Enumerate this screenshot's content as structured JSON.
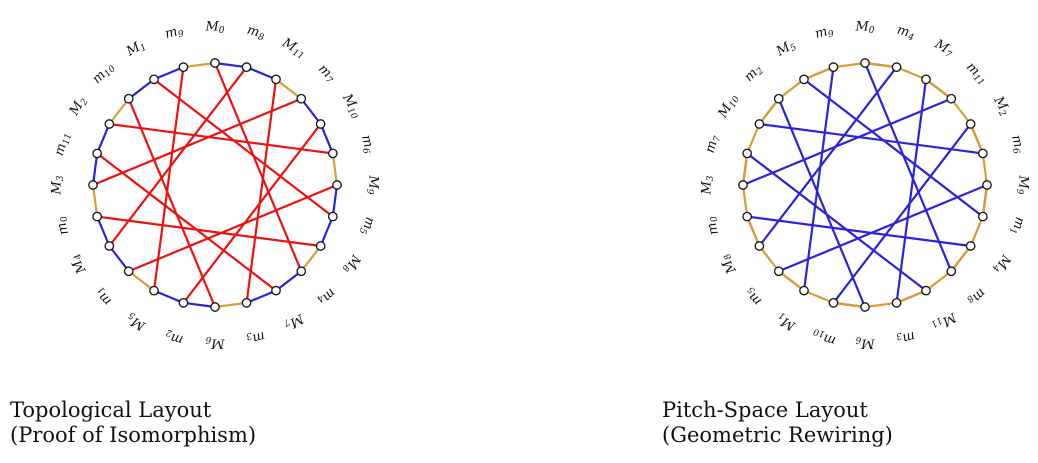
{
  "diagrams": [
    {
      "id": "topological",
      "caption_line1": "Topological Layout",
      "caption_line2": "(Proof of Isomorphism)",
      "nodes": [
        "M0",
        "m8",
        "M11",
        "m7",
        "M10",
        "m6",
        "M9",
        "m5",
        "M8",
        "m4",
        "M7",
        "m3",
        "M6",
        "m2",
        "M5",
        "m1",
        "M4",
        "m0",
        "M3",
        "m11",
        "M2",
        "m10",
        "M1",
        "m9"
      ],
      "edge_colors": {
        "ring_segment_a": "#2a22dd",
        "ring_segment_b": "#d4a035",
        "chord": "#ee1111"
      },
      "ring_segments": [
        [
          "M0",
          "m8",
          "blue"
        ],
        [
          "m8",
          "M11",
          "blue"
        ],
        [
          "M11",
          "m7",
          "gold"
        ],
        [
          "m7",
          "M10",
          "blue"
        ],
        [
          "M10",
          "m6",
          "blue"
        ],
        [
          "m6",
          "M9",
          "gold"
        ],
        [
          "M9",
          "m5",
          "blue"
        ],
        [
          "m5",
          "M8",
          "blue"
        ],
        [
          "M8",
          "m4",
          "gold"
        ],
        [
          "m4",
          "M7",
          "blue"
        ],
        [
          "M7",
          "m3",
          "blue"
        ],
        [
          "m3",
          "M6",
          "gold"
        ],
        [
          "M6",
          "m2",
          "blue"
        ],
        [
          "m2",
          "M5",
          "blue"
        ],
        [
          "M5",
          "m1",
          "gold"
        ],
        [
          "m1",
          "M4",
          "blue"
        ],
        [
          "M4",
          "m0",
          "blue"
        ],
        [
          "m0",
          "M3",
          "gold"
        ],
        [
          "M3",
          "m11",
          "blue"
        ],
        [
          "m11",
          "M2",
          "blue"
        ],
        [
          "M2",
          "m10",
          "gold"
        ],
        [
          "m10",
          "M1",
          "blue"
        ],
        [
          "M1",
          "m9",
          "blue"
        ],
        [
          "m9",
          "M0",
          "gold"
        ]
      ],
      "chords": [
        [
          "M0",
          "m4"
        ],
        [
          "M2",
          "m6"
        ],
        [
          "M3",
          "m7"
        ],
        [
          "M4",
          "m8"
        ],
        [
          "M5",
          "m9"
        ],
        [
          "M6",
          "m10"
        ],
        [
          "M7",
          "m11"
        ],
        [
          "M8",
          "m0"
        ],
        [
          "M9",
          "m1"
        ],
        [
          "M10",
          "m2"
        ],
        [
          "M11",
          "m3"
        ],
        [
          "M1",
          "m5"
        ]
      ]
    },
    {
      "id": "pitch-space",
      "caption_line1": "Pitch-Space Layout",
      "caption_line2": "(Geometric Rewiring)",
      "nodes": [
        "M0",
        "m4",
        "M7",
        "m11",
        "M2",
        "m6",
        "M9",
        "m1",
        "M4",
        "m8",
        "M11",
        "m3",
        "M6",
        "m10",
        "M1",
        "m5",
        "M8",
        "m0",
        "M3",
        "m7",
        "M10",
        "m2",
        "M5",
        "m9"
      ],
      "edge_colors": {
        "ring": "#d4a035",
        "blue": "#2a22dd",
        "red": "#ee1111"
      },
      "ring_segments": [
        [
          "M0",
          "m4",
          "gold"
        ],
        [
          "m4",
          "M7",
          "gold"
        ],
        [
          "M7",
          "m11",
          "gold"
        ],
        [
          "m11",
          "M2",
          "gold"
        ],
        [
          "M2",
          "m6",
          "gold"
        ],
        [
          "m6",
          "M9",
          "gold"
        ],
        [
          "M9",
          "m1",
          "gold"
        ],
        [
          "m1",
          "M4",
          "gold"
        ],
        [
          "M4",
          "m8",
          "gold"
        ],
        [
          "m8",
          "M11",
          "gold"
        ],
        [
          "M11",
          "m3",
          "gold"
        ],
        [
          "m3",
          "M6",
          "gold"
        ],
        [
          "M6",
          "m10",
          "gold"
        ],
        [
          "m10",
          "M1",
          "gold"
        ],
        [
          "M1",
          "m5",
          "gold"
        ],
        [
          "m5",
          "M8",
          "gold"
        ],
        [
          "M8",
          "m0",
          "gold"
        ],
        [
          "m0",
          "M3",
          "gold"
        ],
        [
          "M3",
          "m7",
          "gold"
        ],
        [
          "m7",
          "M10",
          "gold"
        ],
        [
          "M10",
          "m2",
          "gold"
        ],
        [
          "m2",
          "M5",
          "gold"
        ],
        [
          "M5",
          "m9",
          "gold"
        ],
        [
          "m9",
          "M0",
          "gold"
        ]
      ],
      "blue_edges": [
        [
          "M0",
          "m8"
        ],
        [
          "M11",
          "m7"
        ],
        [
          "M10",
          "m6"
        ],
        [
          "M9",
          "m5"
        ],
        [
          "M8",
          "m4"
        ],
        [
          "M7",
          "m3"
        ],
        [
          "M6",
          "m2"
        ],
        [
          "M5",
          "m1"
        ],
        [
          "M4",
          "m0"
        ],
        [
          "M3",
          "m11"
        ],
        [
          "M2",
          "m10"
        ],
        [
          "M1",
          "m9"
        ]
      ],
      "red_edges": [
        [
          "M0",
          "m4"
        ],
        [
          "M2",
          "m6"
        ],
        [
          "M3",
          "m7"
        ],
        [
          "M4",
          "m8"
        ],
        [
          "M5",
          "m9"
        ],
        [
          "M6",
          "m10"
        ],
        [
          "M7",
          "m11"
        ],
        [
          "M8",
          "m0"
        ],
        [
          "M9",
          "m1"
        ],
        [
          "M10",
          "m2"
        ],
        [
          "M11",
          "m3"
        ],
        [
          "M1",
          "m5"
        ]
      ]
    }
  ]
}
